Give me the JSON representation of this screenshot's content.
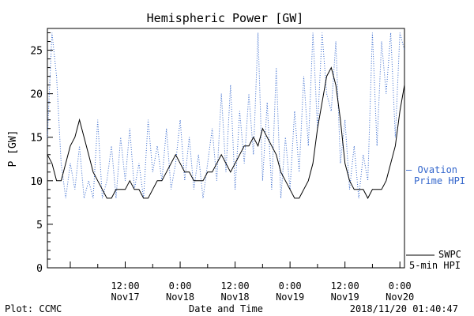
{
  "chart_data": {
    "type": "line",
    "title": "Hemispheric Power [GW]",
    "ylabel": "P [GW]",
    "xlabel": "Date and Time",
    "xlim": [
      "2018-11-16T19:00",
      "2018-11-20T01:00"
    ],
    "ylim": [
      0,
      27.5
    ],
    "yticks": [
      0,
      5,
      10,
      15,
      20,
      25
    ],
    "xticks": [
      {
        "t": "2018-11-17T12:00",
        "line1": "12:00",
        "line2": "Nov17"
      },
      {
        "t": "2018-11-18T00:00",
        "line1": "0:00",
        "line2": "Nov18"
      },
      {
        "t": "2018-11-18T12:00",
        "line1": "12:00",
        "line2": "Nov18"
      },
      {
        "t": "2018-11-19T00:00",
        "line1": "0:00",
        "line2": "Nov19"
      },
      {
        "t": "2018-11-19T12:00",
        "line1": "12:00",
        "line2": "Nov19"
      },
      {
        "t": "2018-11-20T00:00",
        "line1": "0:00",
        "line2": "Nov20"
      }
    ],
    "grid": false,
    "series": [
      {
        "name": "SWPC 5-min HPI",
        "color": "#000000",
        "style": "solid",
        "points": [
          [
            "2018-11-16T19:00",
            13
          ],
          [
            "2018-11-16T20:00",
            12
          ],
          [
            "2018-11-16T21:00",
            10
          ],
          [
            "2018-11-16T22:00",
            10
          ],
          [
            "2018-11-16T23:00",
            12
          ],
          [
            "2018-11-17T00:00",
            14
          ],
          [
            "2018-11-17T01:00",
            15
          ],
          [
            "2018-11-17T02:00",
            17
          ],
          [
            "2018-11-17T03:00",
            15
          ],
          [
            "2018-11-17T04:00",
            13
          ],
          [
            "2018-11-17T05:00",
            11
          ],
          [
            "2018-11-17T06:00",
            10
          ],
          [
            "2018-11-17T07:00",
            9
          ],
          [
            "2018-11-17T08:00",
            8
          ],
          [
            "2018-11-17T09:00",
            8
          ],
          [
            "2018-11-17T10:00",
            9
          ],
          [
            "2018-11-17T11:00",
            9
          ],
          [
            "2018-11-17T12:00",
            9
          ],
          [
            "2018-11-17T13:00",
            10
          ],
          [
            "2018-11-17T14:00",
            9
          ],
          [
            "2018-11-17T15:00",
            9
          ],
          [
            "2018-11-17T16:00",
            8
          ],
          [
            "2018-11-17T17:00",
            8
          ],
          [
            "2018-11-17T18:00",
            9
          ],
          [
            "2018-11-17T19:00",
            10
          ],
          [
            "2018-11-17T20:00",
            10
          ],
          [
            "2018-11-17T21:00",
            11
          ],
          [
            "2018-11-17T22:00",
            12
          ],
          [
            "2018-11-17T23:00",
            13
          ],
          [
            "2018-11-18T00:00",
            12
          ],
          [
            "2018-11-18T01:00",
            11
          ],
          [
            "2018-11-18T02:00",
            11
          ],
          [
            "2018-11-18T03:00",
            10
          ],
          [
            "2018-11-18T04:00",
            10
          ],
          [
            "2018-11-18T05:00",
            10
          ],
          [
            "2018-11-18T06:00",
            11
          ],
          [
            "2018-11-18T07:00",
            11
          ],
          [
            "2018-11-18T08:00",
            12
          ],
          [
            "2018-11-18T09:00",
            13
          ],
          [
            "2018-11-18T10:00",
            12
          ],
          [
            "2018-11-18T11:00",
            11
          ],
          [
            "2018-11-18T12:00",
            12
          ],
          [
            "2018-11-18T13:00",
            13
          ],
          [
            "2018-11-18T14:00",
            14
          ],
          [
            "2018-11-18T15:00",
            14
          ],
          [
            "2018-11-18T16:00",
            15
          ],
          [
            "2018-11-18T17:00",
            14
          ],
          [
            "2018-11-18T18:00",
            16
          ],
          [
            "2018-11-18T19:00",
            15
          ],
          [
            "2018-11-18T20:00",
            14
          ],
          [
            "2018-11-18T21:00",
            13
          ],
          [
            "2018-11-18T22:00",
            11
          ],
          [
            "2018-11-18T23:00",
            10
          ],
          [
            "2018-11-19T00:00",
            9
          ],
          [
            "2018-11-19T01:00",
            8
          ],
          [
            "2018-11-19T02:00",
            8
          ],
          [
            "2018-11-19T03:00",
            9
          ],
          [
            "2018-11-19T04:00",
            10
          ],
          [
            "2018-11-19T05:00",
            12
          ],
          [
            "2018-11-19T06:00",
            16
          ],
          [
            "2018-11-19T07:00",
            19
          ],
          [
            "2018-11-19T08:00",
            22
          ],
          [
            "2018-11-19T09:00",
            23
          ],
          [
            "2018-11-19T10:00",
            21
          ],
          [
            "2018-11-19T11:00",
            17
          ],
          [
            "2018-11-19T12:00",
            12
          ],
          [
            "2018-11-19T13:00",
            10
          ],
          [
            "2018-11-19T14:00",
            9
          ],
          [
            "2018-11-19T15:00",
            9
          ],
          [
            "2018-11-19T16:00",
            9
          ],
          [
            "2018-11-19T17:00",
            8
          ],
          [
            "2018-11-19T18:00",
            9
          ],
          [
            "2018-11-19T19:00",
            9
          ],
          [
            "2018-11-19T20:00",
            9
          ],
          [
            "2018-11-19T21:00",
            10
          ],
          [
            "2018-11-19T22:00",
            12
          ],
          [
            "2018-11-19T23:00",
            14
          ],
          [
            "2018-11-20T00:00",
            18
          ],
          [
            "2018-11-20T01:00",
            21
          ]
        ]
      },
      {
        "name": "Ovation Prime HPI",
        "color": "#3366cc",
        "style": "dotted",
        "points": [
          [
            "2018-11-16T19:00",
            15
          ],
          [
            "2018-11-16T20:00",
            27
          ],
          [
            "2018-11-16T21:00",
            22
          ],
          [
            "2018-11-16T22:00",
            12
          ],
          [
            "2018-11-16T23:00",
            8
          ],
          [
            "2018-11-17T00:00",
            12
          ],
          [
            "2018-11-17T01:00",
            9
          ],
          [
            "2018-11-17T02:00",
            14
          ],
          [
            "2018-11-17T03:00",
            8
          ],
          [
            "2018-11-17T04:00",
            10
          ],
          [
            "2018-11-17T05:00",
            8
          ],
          [
            "2018-11-17T06:00",
            17
          ],
          [
            "2018-11-17T07:00",
            8
          ],
          [
            "2018-11-17T08:00",
            10
          ],
          [
            "2018-11-17T09:00",
            14
          ],
          [
            "2018-11-17T10:00",
            8
          ],
          [
            "2018-11-17T11:00",
            15
          ],
          [
            "2018-11-17T12:00",
            10
          ],
          [
            "2018-11-17T13:00",
            16
          ],
          [
            "2018-11-17T14:00",
            9
          ],
          [
            "2018-11-17T15:00",
            12
          ],
          [
            "2018-11-17T16:00",
            8
          ],
          [
            "2018-11-17T17:00",
            17
          ],
          [
            "2018-11-17T18:00",
            11
          ],
          [
            "2018-11-17T19:00",
            14
          ],
          [
            "2018-11-17T20:00",
            10
          ],
          [
            "2018-11-17T21:00",
            16
          ],
          [
            "2018-11-17T22:00",
            9
          ],
          [
            "2018-11-17T23:00",
            12
          ],
          [
            "2018-11-18T00:00",
            17
          ],
          [
            "2018-11-18T01:00",
            10
          ],
          [
            "2018-11-18T02:00",
            15
          ],
          [
            "2018-11-18T03:00",
            9
          ],
          [
            "2018-11-18T04:00",
            13
          ],
          [
            "2018-11-18T05:00",
            8
          ],
          [
            "2018-11-18T06:00",
            12
          ],
          [
            "2018-11-18T07:00",
            16
          ],
          [
            "2018-11-18T08:00",
            10
          ],
          [
            "2018-11-18T09:00",
            20
          ],
          [
            "2018-11-18T10:00",
            11
          ],
          [
            "2018-11-18T11:00",
            21
          ],
          [
            "2018-11-18T12:00",
            9
          ],
          [
            "2018-11-18T13:00",
            18
          ],
          [
            "2018-11-18T14:00",
            12
          ],
          [
            "2018-11-18T15:00",
            20
          ],
          [
            "2018-11-18T16:00",
            13
          ],
          [
            "2018-11-18T17:00",
            27
          ],
          [
            "2018-11-18T18:00",
            10
          ],
          [
            "2018-11-18T19:00",
            19
          ],
          [
            "2018-11-18T20:00",
            9
          ],
          [
            "2018-11-18T21:00",
            23
          ],
          [
            "2018-11-18T22:00",
            8
          ],
          [
            "2018-11-18T23:00",
            15
          ],
          [
            "2018-11-19T00:00",
            9
          ],
          [
            "2018-11-19T01:00",
            18
          ],
          [
            "2018-11-19T02:00",
            11
          ],
          [
            "2018-11-19T03:00",
            22
          ],
          [
            "2018-11-19T04:00",
            14
          ],
          [
            "2018-11-19T05:00",
            27
          ],
          [
            "2018-11-19T06:00",
            16
          ],
          [
            "2018-11-19T07:00",
            27
          ],
          [
            "2018-11-19T08:00",
            20
          ],
          [
            "2018-11-19T09:00",
            18
          ],
          [
            "2018-11-19T10:00",
            26
          ],
          [
            "2018-11-19T11:00",
            12
          ],
          [
            "2018-11-19T12:00",
            17
          ],
          [
            "2018-11-19T13:00",
            9
          ],
          [
            "2018-11-19T14:00",
            14
          ],
          [
            "2018-11-19T15:00",
            8
          ],
          [
            "2018-11-19T16:00",
            13
          ],
          [
            "2018-11-19T17:00",
            10
          ],
          [
            "2018-11-19T18:00",
            27
          ],
          [
            "2018-11-19T19:00",
            14
          ],
          [
            "2018-11-19T20:00",
            26
          ],
          [
            "2018-11-19T21:00",
            20
          ],
          [
            "2018-11-19T22:00",
            27
          ],
          [
            "2018-11-19T23:00",
            15
          ],
          [
            "2018-11-20T00:00",
            27
          ],
          [
            "2018-11-20T01:00",
            25
          ]
        ]
      }
    ],
    "legend": [
      {
        "series": 1,
        "lines": [
          "– Ovation",
          "Prime HPI"
        ]
      },
      {
        "series": 0,
        "lines": [
          "SWPC",
          "5-min HPI"
        ]
      }
    ],
    "legend_position": "right"
  },
  "footer": {
    "left": "Plot: CCMC",
    "center": "Date and Time",
    "right": "2018/11/20 01:40:47"
  }
}
